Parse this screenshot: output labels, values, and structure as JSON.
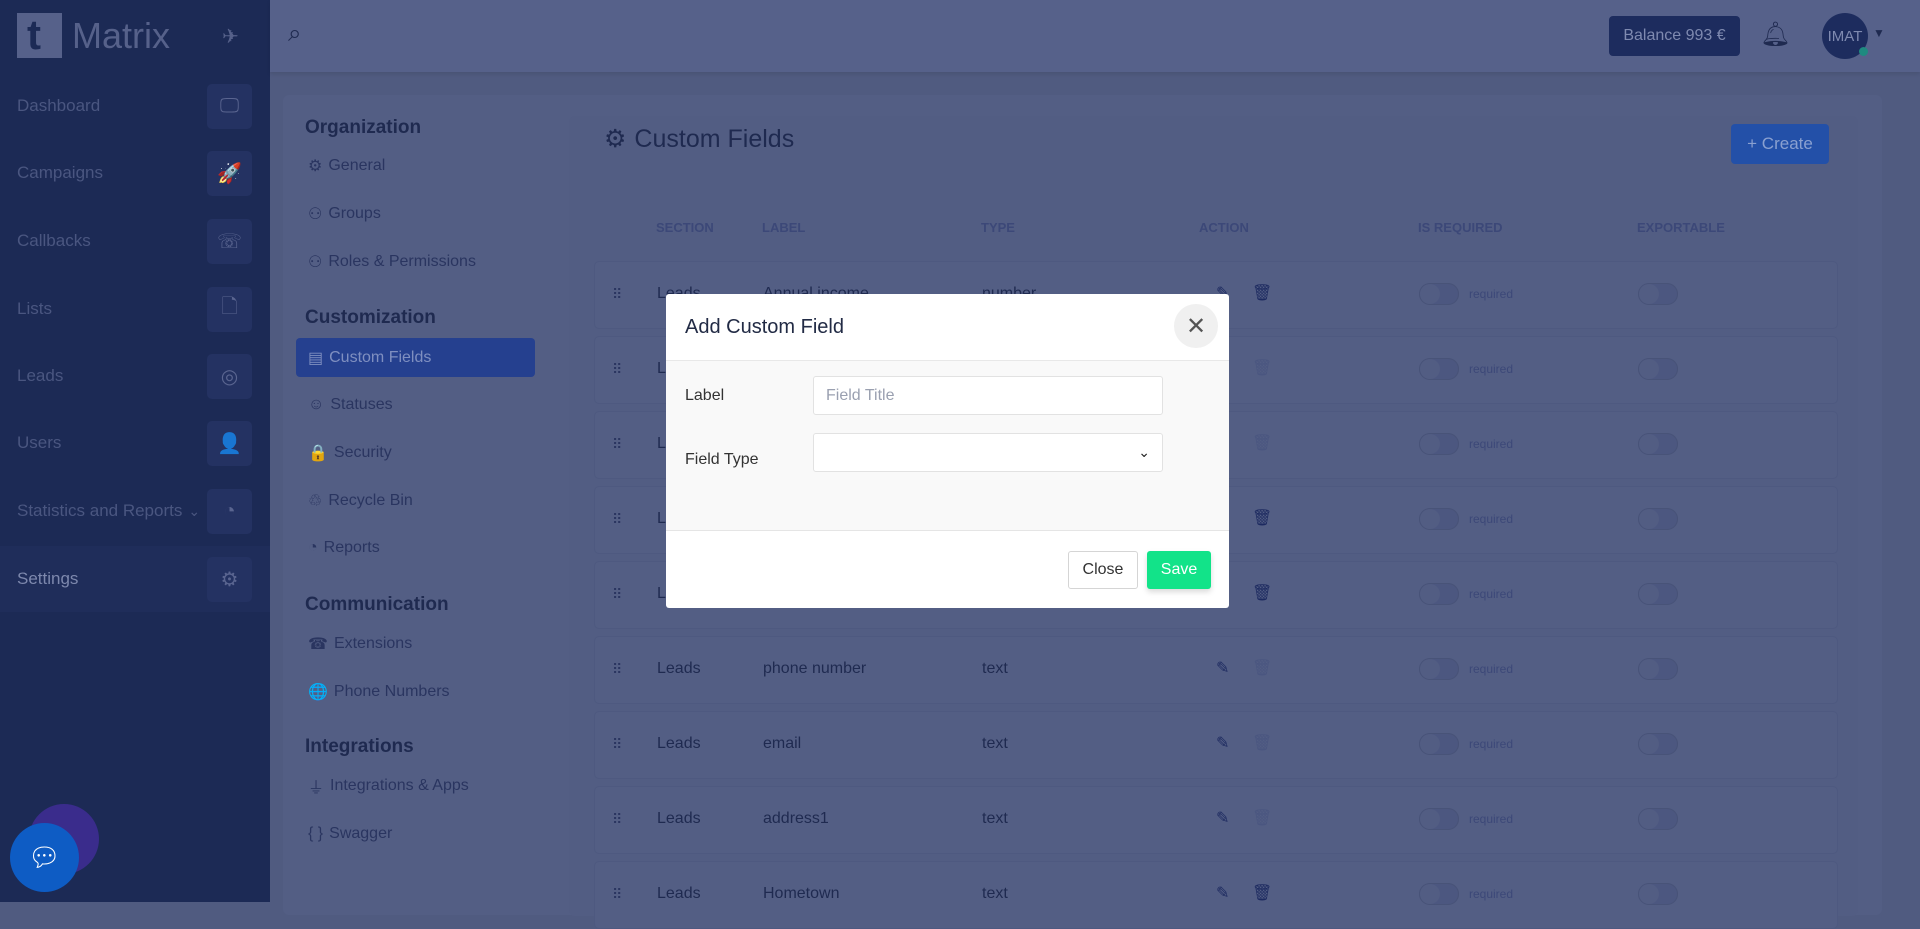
{
  "app": {
    "name": "Matrix"
  },
  "sidebar": {
    "items": [
      {
        "label": "Dashboard",
        "icon": "monitor-icon",
        "glyph": "🖵"
      },
      {
        "label": "Campaigns",
        "icon": "rocket-icon",
        "glyph": "🚀"
      },
      {
        "label": "Callbacks",
        "icon": "phone-callback-icon",
        "glyph": "☏"
      },
      {
        "label": "Lists",
        "icon": "file-icon",
        "glyph": "🗋"
      },
      {
        "label": "Leads",
        "icon": "target-icon",
        "glyph": "◎"
      },
      {
        "label": "Users",
        "icon": "user-icon",
        "glyph": "👤"
      },
      {
        "label": "Statistics and Reports",
        "icon": "pie-chart-icon",
        "glyph": "◔",
        "chevron": "⌄"
      },
      {
        "label": "Settings",
        "icon": "gear-icon",
        "glyph": "⚙",
        "active": true
      }
    ]
  },
  "topbar": {
    "balance": "Balance 993 €",
    "avatar": "IMAT"
  },
  "settings_nav": {
    "sections": [
      {
        "title": "Organization",
        "items": [
          {
            "label": "General",
            "glyph": "⚙"
          },
          {
            "label": "Groups",
            "glyph": "⚇"
          },
          {
            "label": "Roles & Permissions",
            "glyph": "⚇"
          }
        ]
      },
      {
        "title": "Customization",
        "items": [
          {
            "label": "Custom Fields",
            "glyph": "▤",
            "active": true
          },
          {
            "label": "Statuses",
            "glyph": "☺"
          },
          {
            "label": "Security",
            "glyph": "🔒"
          },
          {
            "label": "Recycle Bin",
            "glyph": "♲"
          },
          {
            "label": "Reports",
            "glyph": "◔"
          }
        ]
      },
      {
        "title": "Communication",
        "items": [
          {
            "label": "Extensions",
            "glyph": "☎"
          },
          {
            "label": "Phone Numbers",
            "glyph": "🌐"
          }
        ]
      },
      {
        "title": "Integrations",
        "items": [
          {
            "label": "Integrations & Apps",
            "glyph": "⏚"
          },
          {
            "label": "Swagger",
            "glyph": "{ }"
          }
        ]
      }
    ]
  },
  "main": {
    "title": "Custom Fields",
    "create_label": "+ Create",
    "columns": [
      "SECTION",
      "LABEL",
      "TYPE",
      "ACTION",
      "IS REQUIRED",
      "EXPORTABLE"
    ],
    "required_label": "required",
    "rows": [
      {
        "section": "Leads",
        "label": "Annual income",
        "type": "number",
        "deletable": true
      },
      {
        "section": "Leads",
        "label": "",
        "type": "",
        "deletable": false
      },
      {
        "section": "Leads",
        "label": "",
        "type": "",
        "deletable": false
      },
      {
        "section": "Leads",
        "label": "",
        "type": "",
        "deletable": true
      },
      {
        "section": "Leads",
        "label": "",
        "type": "",
        "deletable": true
      },
      {
        "section": "Leads",
        "label": "phone number",
        "type": "text",
        "deletable": false
      },
      {
        "section": "Leads",
        "label": "email",
        "type": "text",
        "deletable": false
      },
      {
        "section": "Leads",
        "label": "address1",
        "type": "text",
        "deletable": false
      },
      {
        "section": "Leads",
        "label": "Hometown",
        "type": "text",
        "deletable": true
      }
    ]
  },
  "modal": {
    "title": "Add Custom Field",
    "label_label": "Label",
    "label_placeholder": "Field Title",
    "label_value": "",
    "field_type_label": "Field Type",
    "field_type_value": "",
    "close_label": "Close",
    "save_label": "Save"
  },
  "colors": {
    "save": "#12e389",
    "active_nav": "#25408f",
    "create": "#2350a8"
  }
}
